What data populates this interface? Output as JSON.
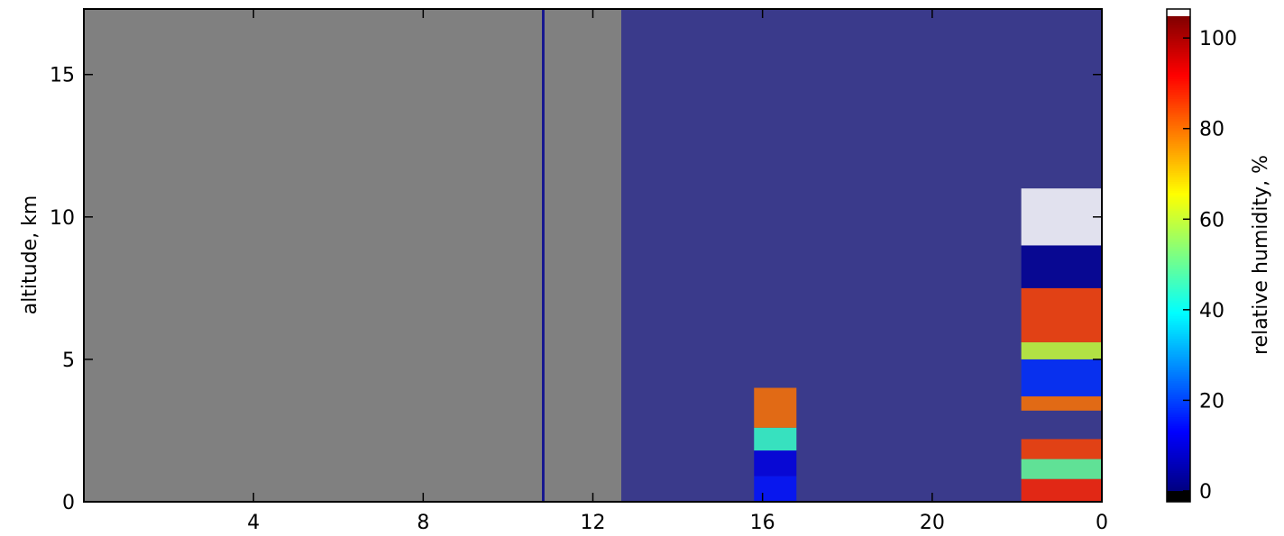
{
  "chart_data": {
    "type": "heatmap",
    "xlim": [
      0,
      24
    ],
    "ylim": [
      0,
      17.3
    ],
    "xticks": [
      4,
      8,
      12,
      16,
      20,
      {
        "value": 24,
        "label": "0"
      }
    ],
    "yticks": [
      0,
      5,
      10,
      15
    ],
    "ylabel": "altitude, km",
    "missing_color": "#808080",
    "colorbar": {
      "label": "relative humidity, %",
      "colormap": "jet",
      "range": [
        0,
        105
      ],
      "clim": [
        -2.4,
        106.4
      ],
      "ticks": [
        0,
        20,
        40,
        60,
        80,
        100
      ]
    },
    "cells": [
      {
        "x": [
          10.8,
          10.86
        ],
        "y": [
          0,
          17.3
        ],
        "value": 2
      },
      {
        "x": [
          12.67,
          24
        ],
        "y": [
          0,
          17.3
        ],
        "value": 2
      },
      {
        "x": [
          15.8,
          16.8
        ],
        "y": [
          0,
          0.9
        ],
        "value": 15
      },
      {
        "x": [
          15.8,
          16.8
        ],
        "y": [
          0.9,
          1.8
        ],
        "value": 10
      },
      {
        "x": [
          15.8,
          16.8
        ],
        "y": [
          1.8,
          2.6
        ],
        "value": 45
      },
      {
        "x": [
          15.8,
          16.8
        ],
        "y": [
          2.6,
          4
        ],
        "value": 80
      },
      {
        "x": [
          22.1,
          24
        ],
        "y": [
          0,
          0.8
        ],
        "value": 88
      },
      {
        "x": [
          22.1,
          24
        ],
        "y": [
          0.8,
          1.5
        ],
        "value": 50
      },
      {
        "x": [
          22.1,
          24
        ],
        "y": [
          1.5,
          2.2
        ],
        "value": 85
      },
      {
        "x": [
          22.1,
          24
        ],
        "y": [
          3.2,
          3.7
        ],
        "value": 80
      },
      {
        "x": [
          22.1,
          24
        ],
        "y": [
          3.7,
          5
        ],
        "value": 18
      },
      {
        "x": [
          22.1,
          24
        ],
        "y": [
          5,
          5.6
        ],
        "value": 60
      },
      {
        "x": [
          22.1,
          24
        ],
        "y": [
          5.6,
          7.5
        ],
        "value": 85
      },
      {
        "x": [
          22.1,
          24
        ],
        "y": [
          7.5,
          9
        ],
        "value": 2
      },
      {
        "x": [
          22.1,
          24
        ],
        "y": [
          9,
          11
        ],
        "value": 106
      }
    ]
  }
}
